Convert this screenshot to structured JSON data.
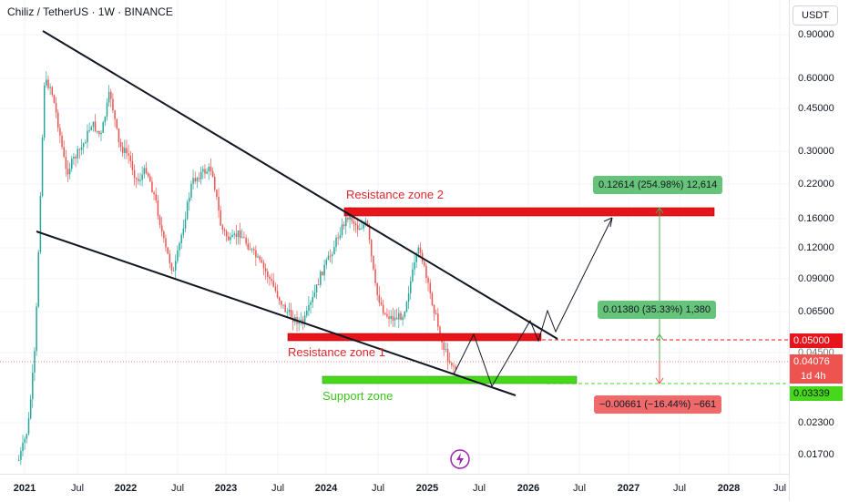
{
  "header": {
    "title": "Chiliz / TetherUS · 1W · BINANCE"
  },
  "toolbar": {
    "currency_label": "USDT"
  },
  "price_axis": {
    "ticks": [
      "0.90000",
      "0.60000",
      "0.45000",
      "0.30000",
      "0.22000",
      "0.16000",
      "0.12000",
      "0.09000",
      "0.06500",
      "0.04500",
      "0.02300",
      "0.01700"
    ],
    "badges": {
      "resistance_price": "0.05000",
      "current_price": "0.04076",
      "countdown": "1d 4h",
      "support_price": "0.03339"
    }
  },
  "time_axis": {
    "ticks": [
      "2021",
      "Jul",
      "2022",
      "Jul",
      "2023",
      "Jul",
      "2024",
      "Jul",
      "2025",
      "Jul",
      "2026",
      "Jul",
      "2027",
      "Jul",
      "2028",
      "Jul"
    ]
  },
  "annotations": {
    "resistance_zone_2": "Resistance zone 2",
    "resistance_zone_1": "Resistance zone 1",
    "support_zone": "Support zone",
    "measure_upper": "0.12614 (254.98%) 12,614",
    "measure_middle": "0.01380 (35.33%) 1,380",
    "measure_lower": "−0.00661 (−16.44%) −661"
  },
  "colors": {
    "up_candle": "#26a69a",
    "down_candle": "#ef5350",
    "resistance_zone": "#e8141c",
    "support_zone": "#47d81c",
    "measure_up_bg": "#66c47a",
    "measure_down_bg": "#ef6b6b"
  },
  "icons": {
    "logo": "lightning-bolt-icon"
  }
}
